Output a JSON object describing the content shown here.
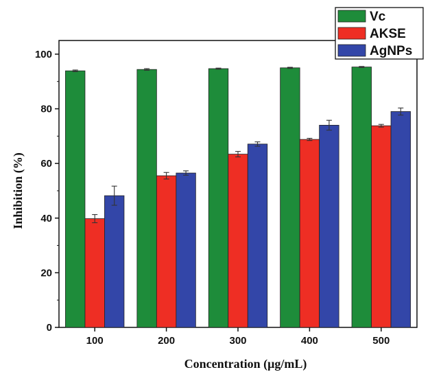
{
  "chart_data": {
    "type": "bar",
    "xlabel": "Concentration (μg/mL)",
    "ylabel": "Inhibition (%)",
    "ylim": [
      0,
      105
    ],
    "yticks": [
      0,
      20,
      40,
      60,
      80,
      100
    ],
    "categories": [
      "100",
      "200",
      "300",
      "400",
      "500"
    ],
    "grid": false,
    "legend_position": "top-right",
    "series": [
      {
        "name": "Vc",
        "color": "#1e8c3a",
        "values": [
          93.9,
          94.4,
          94.7,
          95.0,
          95.3
        ],
        "errors": [
          0.3,
          0.3,
          0.2,
          0.2,
          0.2
        ]
      },
      {
        "name": "AKSE",
        "color": "#ee2e24",
        "values": [
          39.8,
          55.5,
          63.4,
          68.8,
          73.8
        ],
        "errors": [
          1.5,
          1.2,
          1.0,
          0.4,
          0.5
        ]
      },
      {
        "name": "AgNPs",
        "color": "#3346a8",
        "values": [
          48.2,
          56.5,
          67.1,
          74.0,
          79.0
        ],
        "errors": [
          3.5,
          0.8,
          0.8,
          1.8,
          1.3
        ]
      }
    ]
  }
}
